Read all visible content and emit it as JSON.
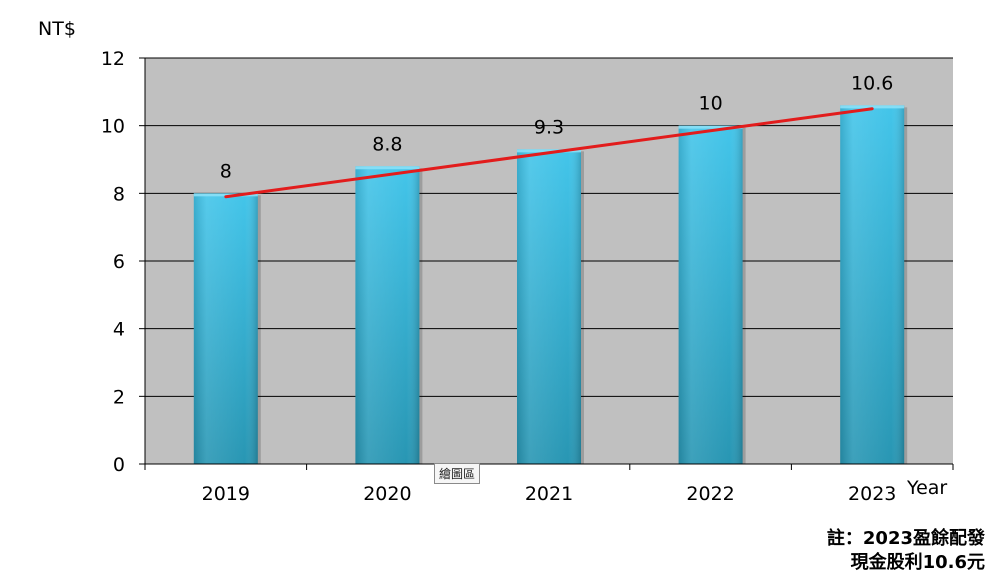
{
  "chart_data": {
    "type": "bar",
    "unit_label": "NT$",
    "x_axis_title": "Year",
    "categories": [
      "2019",
      "2020",
      "2021",
      "2022",
      "2023"
    ],
    "values": [
      8,
      8.8,
      9.3,
      10,
      10.6
    ],
    "data_labels": [
      "8",
      "8.8",
      "9.3",
      "10",
      "10.6"
    ],
    "ylim": [
      0,
      12
    ],
    "yticks": [
      0,
      2,
      4,
      6,
      8,
      10,
      12
    ],
    "grid": true,
    "trend_line": {
      "from": 7.9,
      "to": 10.5,
      "color": "#e21c1c"
    },
    "colors": {
      "plot_background": "#c0c0c0",
      "bar_light": "#43c5ea",
      "bar_dark": "#2896b3",
      "gridline": "#000000",
      "trend": "#e21c1c"
    }
  },
  "note": {
    "line1": "註：2023盈餘配發",
    "line2": "現金股利10.6元"
  },
  "tooltip": {
    "text": "繪圖區"
  }
}
